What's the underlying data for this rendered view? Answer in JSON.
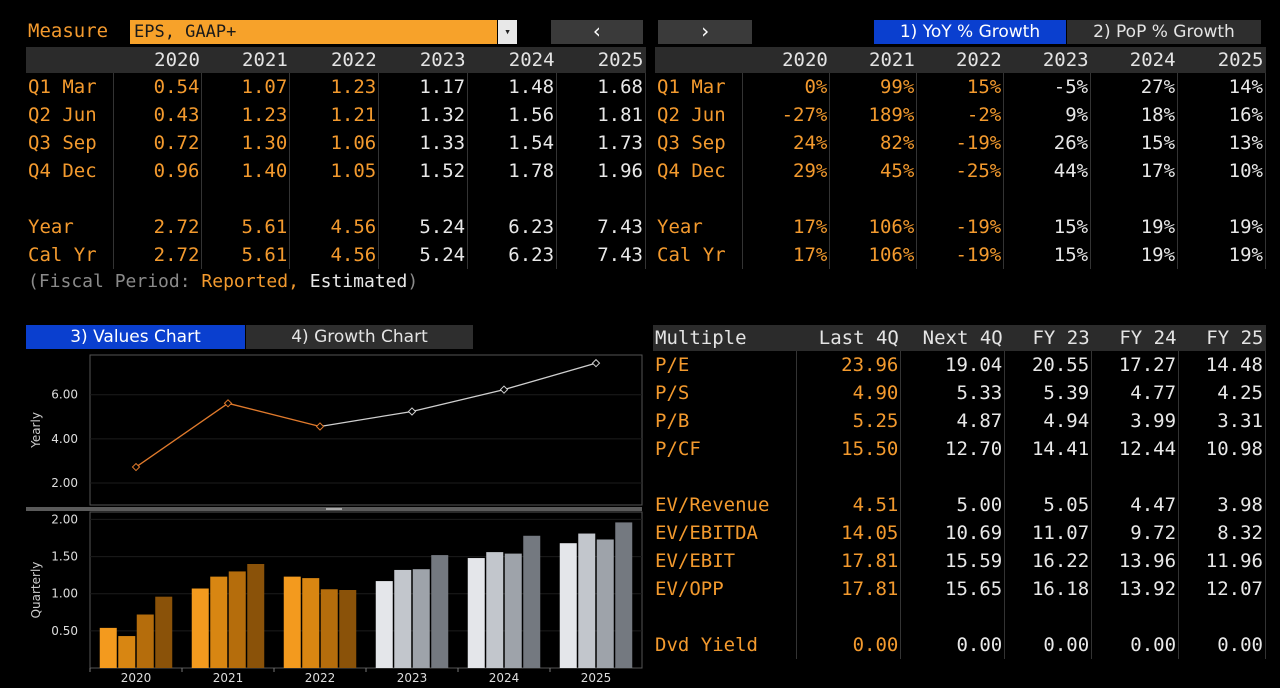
{
  "measure": {
    "label": "Measure",
    "value": "EPS, GAAP+",
    "dropdown_icon": "▾"
  },
  "nav": {
    "prev": "‹",
    "next": "›"
  },
  "growth_tabs": [
    {
      "label": "1) YoY % Growth",
      "active": true
    },
    {
      "label": "2) PoP % Growth",
      "active": false
    }
  ],
  "values_table": {
    "years": [
      "2020",
      "2021",
      "2022",
      "2023",
      "2024",
      "2025"
    ],
    "rows": [
      {
        "label": "Q1 Mar",
        "cells": [
          "0.54",
          "1.07",
          "1.23",
          "1.17",
          "1.48",
          "1.68"
        ]
      },
      {
        "label": "Q2 Jun",
        "cells": [
          "0.43",
          "1.23",
          "1.21",
          "1.32",
          "1.56",
          "1.81"
        ]
      },
      {
        "label": "Q3 Sep",
        "cells": [
          "0.72",
          "1.30",
          "1.06",
          "1.33",
          "1.54",
          "1.73"
        ]
      },
      {
        "label": "Q4 Dec",
        "cells": [
          "0.96",
          "1.40",
          "1.05",
          "1.52",
          "1.78",
          "1.96"
        ]
      },
      {
        "label": "",
        "cells": [
          "",
          "",
          "",
          "",
          "",
          ""
        ]
      },
      {
        "label": "Year",
        "cells": [
          "2.72",
          "5.61",
          "4.56",
          "5.24",
          "6.23",
          "7.43"
        ]
      },
      {
        "label": "Cal Yr",
        "cells": [
          "2.72",
          "5.61",
          "4.56",
          "5.24",
          "6.23",
          "7.43"
        ]
      }
    ]
  },
  "growth_table": {
    "years": [
      "2020",
      "2021",
      "2022",
      "2023",
      "2024",
      "2025"
    ],
    "rows": [
      {
        "label": "Q1 Mar",
        "cells": [
          "0%",
          "99%",
          "15%",
          "-5%",
          "27%",
          "14%"
        ]
      },
      {
        "label": "Q2 Jun",
        "cells": [
          "-27%",
          "189%",
          "-2%",
          "9%",
          "18%",
          "16%"
        ]
      },
      {
        "label": "Q3 Sep",
        "cells": [
          "24%",
          "82%",
          "-19%",
          "26%",
          "15%",
          "13%"
        ]
      },
      {
        "label": "Q4 Dec",
        "cells": [
          "29%",
          "45%",
          "-25%",
          "44%",
          "17%",
          "10%"
        ]
      },
      {
        "label": "",
        "cells": [
          "",
          "",
          "",
          "",
          "",
          ""
        ]
      },
      {
        "label": "Year",
        "cells": [
          "17%",
          "106%",
          "-19%",
          "15%",
          "19%",
          "19%"
        ]
      },
      {
        "label": "Cal Yr",
        "cells": [
          "17%",
          "106%",
          "-19%",
          "15%",
          "19%",
          "19%"
        ]
      }
    ]
  },
  "fiscal_note": {
    "prefix": "(Fiscal Period: ",
    "reported": "Reported,",
    "estimated": " Estimated",
    "suffix": ")"
  },
  "chart_tabs": [
    {
      "label": "3) Values Chart",
      "active": true
    },
    {
      "label": "4) Growth Chart",
      "active": false
    }
  ],
  "multiples_table": {
    "headers": [
      "Multiple",
      "Last 4Q",
      "Next 4Q",
      "FY 23",
      "FY 24",
      "FY 25"
    ],
    "rows": [
      {
        "label": "P/E",
        "cells": [
          "23.96",
          "19.04",
          "20.55",
          "17.27",
          "14.48"
        ]
      },
      {
        "label": "P/S",
        "cells": [
          "4.90",
          "5.33",
          "5.39",
          "4.77",
          "4.25"
        ]
      },
      {
        "label": "P/B",
        "cells": [
          "5.25",
          "4.87",
          "4.94",
          "3.99",
          "3.31"
        ]
      },
      {
        "label": "P/CF",
        "cells": [
          "15.50",
          "12.70",
          "14.41",
          "12.44",
          "10.98"
        ]
      },
      {
        "label": "",
        "cells": [
          "",
          "",
          "",
          "",
          ""
        ]
      },
      {
        "label": "EV/Revenue",
        "cells": [
          "4.51",
          "5.00",
          "5.05",
          "4.47",
          "3.98"
        ]
      },
      {
        "label": "EV/EBITDA",
        "cells": [
          "14.05",
          "10.69",
          "11.07",
          "9.72",
          "8.32"
        ]
      },
      {
        "label": "EV/EBIT",
        "cells": [
          "17.81",
          "15.59",
          "16.22",
          "13.96",
          "11.96"
        ]
      },
      {
        "label": "EV/OPP",
        "cells": [
          "17.81",
          "15.65",
          "16.18",
          "13.92",
          "12.07"
        ]
      },
      {
        "label": "",
        "cells": [
          "",
          "",
          "",
          "",
          ""
        ]
      },
      {
        "label": "Dvd Yield",
        "cells": [
          "0.00",
          "0.00",
          "0.00",
          "0.00",
          "0.00"
        ]
      }
    ]
  },
  "chart_data": [
    {
      "type": "line",
      "ylabel": "Yearly",
      "x": [
        "2020",
        "2021",
        "2022",
        "2023",
        "2024",
        "2025"
      ],
      "series": [
        {
          "values": [
            2.72,
            5.61,
            4.56,
            5.24,
            6.23,
            7.43
          ]
        }
      ],
      "yticks": [
        2.0,
        4.0,
        6.0
      ],
      "ytick_labels": [
        "2.00",
        "4.00",
        "6.00"
      ],
      "ylim": [
        1.0,
        7.8
      ],
      "reported_until": "2022",
      "colors": {
        "reported": "#e07a2c",
        "estimated": "#cfcfcf"
      }
    },
    {
      "type": "bar",
      "ylabel": "Quarterly",
      "categories": [
        "2020",
        "2021",
        "2022",
        "2023",
        "2024",
        "2025"
      ],
      "series": [
        {
          "values": [
            0.54,
            1.07,
            1.23,
            1.17,
            1.48,
            1.68
          ]
        },
        {
          "values": [
            0.43,
            1.23,
            1.21,
            1.32,
            1.56,
            1.81
          ]
        },
        {
          "values": [
            0.72,
            1.3,
            1.06,
            1.33,
            1.54,
            1.73
          ]
        },
        {
          "values": [
            0.96,
            1.4,
            1.05,
            1.52,
            1.78,
            1.96
          ]
        }
      ],
      "yticks": [
        0.5,
        1.0,
        1.5,
        2.0
      ],
      "ytick_labels": [
        "0.50",
        "1.00",
        "1.50",
        "2.00"
      ],
      "ylim": [
        0,
        2.1
      ],
      "colors_reported": [
        "#f39a1e",
        "#d88612",
        "#b56d0c",
        "#8a5209"
      ],
      "colors_estimated": [
        "#e4e6ea",
        "#c2c6cc",
        "#9ea3aa",
        "#747980"
      ]
    }
  ],
  "colors": {
    "accent": "#f39a2e",
    "tab_active": "#0a3fcf",
    "header_bg": "#2b2b2b"
  }
}
